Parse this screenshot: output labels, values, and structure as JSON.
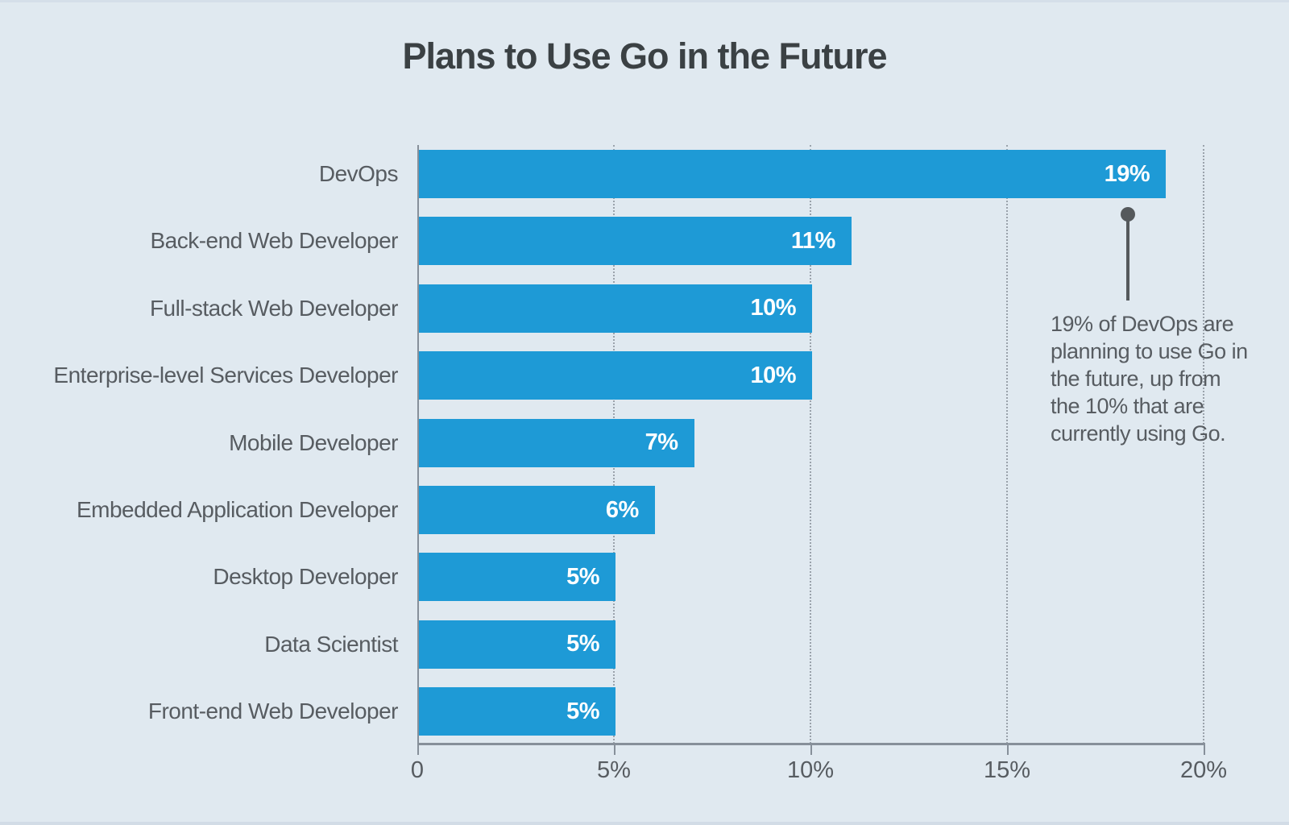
{
  "title": "Plans to Use Go in the Future",
  "chart_data": {
    "type": "bar",
    "orientation": "horizontal",
    "title": "Plans to Use Go in the Future",
    "categories": [
      "DevOps",
      "Back-end Web Developer",
      "Full-stack Web Developer",
      "Enterprise-level Services Developer",
      "Mobile Developer",
      "Embedded Application Developer",
      "Desktop Developer",
      "Data Scientist",
      "Front-end Web Developer"
    ],
    "values": [
      19,
      11,
      10,
      10,
      7,
      6,
      5,
      5,
      5
    ],
    "value_labels": [
      "19%",
      "11%",
      "10%",
      "10%",
      "7%",
      "6%",
      "5%",
      "5%",
      "5%"
    ],
    "xlabel": "",
    "ylabel": "",
    "xlim": [
      0,
      20
    ],
    "x_tick_labels": [
      "0",
      "5%",
      "10%",
      "15%",
      "20%"
    ],
    "x_tick_values": [
      0,
      5,
      10,
      15,
      20
    ],
    "grid": "dotted vertical gridlines at 5%, 10%, 15%, 20%",
    "legend": "none",
    "bar_color": "#1e9ad6",
    "annotation": {
      "text": "19% of DevOps are planning to use Go in the future, up from the 10% that are currently using Go.",
      "lines": [
        "19% of DevOps are",
        "planning to use Go in",
        "the future, up from",
        "the 10% that are",
        "currently using Go."
      ],
      "attached_to": "DevOps bar end"
    }
  },
  "colors": {
    "background": "#e0e9f0",
    "bar": "#1e9ad6",
    "title_text": "#3b4144",
    "label_text": "#575c61",
    "axis": "#87909a",
    "gridline": "#9aa2ab",
    "callout": "#55595c",
    "bar_value_text": "#ffffff"
  }
}
